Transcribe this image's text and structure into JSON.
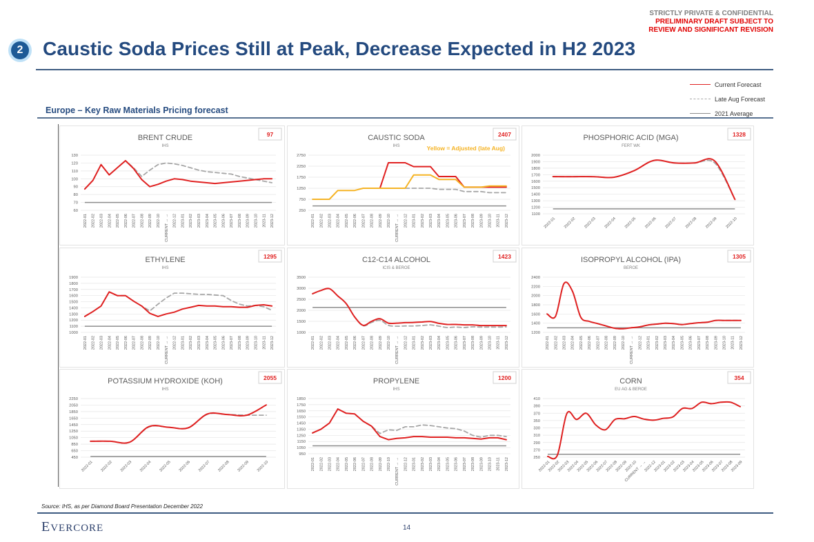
{
  "header": {
    "confidential": "STRICTLY PRIVATE & CONFIDENTIAL",
    "draft_line1": "PRELIMINARY DRAFT SUBJECT TO",
    "draft_line2": "REVIEW AND SIGNIFICANT REVISION",
    "section_number": "2",
    "title": "Caustic Soda Prices Still at Peak, Decrease Expected in H2 2023",
    "subtitle": "Europe – Key Raw Materials Pricing forecast"
  },
  "legend": [
    {
      "label": "Current Forecast",
      "style": "solid-red"
    },
    {
      "label": "Late Aug Forecast",
      "style": "dashed-grey"
    },
    {
      "label": "2021 Average",
      "style": "solid-grey"
    }
  ],
  "colors": {
    "current": "#e02020",
    "lateaug": "#a6a6a6",
    "average": "#8c8c8c",
    "adjusted": "#f5b324",
    "title_blue": "#244a7f",
    "badge_red": "#e02020"
  },
  "footer": {
    "source": "Source: IHS, as per Diamond Board Presentation December 2022",
    "logo_initial": "E",
    "logo_rest": "VERCORE",
    "page": "14"
  },
  "chart_data": [
    {
      "id": "brent",
      "type": "line",
      "title": "BRENT CRUDE",
      "source": "IHS",
      "badge": "97",
      "ylim": [
        60,
        130
      ],
      "yticks": [
        60,
        70,
        80,
        90,
        100,
        110,
        120,
        130
      ],
      "rotate": 90,
      "categories": [
        "2022-01",
        "2022-02",
        "2022-03",
        "2022-04",
        "2022-05",
        "2022-06",
        "2022-07",
        "2022-08",
        "2022-09",
        "2022-10",
        "CURRENT → →",
        "2022-12",
        "2023-01",
        "2023-02",
        "2023-03",
        "2023-04",
        "2023-05",
        "2023-06",
        "2023-07",
        "2023-08",
        "2023-09",
        "2023-10",
        "2023-11",
        "2023-12"
      ],
      "series": [
        {
          "name": "Late Aug Forecast",
          "style": "lateaug",
          "values": [
            87,
            98,
            118,
            105,
            114,
            123,
            114,
            103,
            111,
            118,
            120,
            119,
            117,
            114,
            111,
            109,
            108,
            107,
            106,
            103,
            101,
            99,
            97,
            95
          ]
        },
        {
          "name": "Current Forecast",
          "style": "current",
          "values": [
            87,
            98,
            118,
            105,
            114,
            123,
            113,
            99,
            90,
            93,
            97,
            100,
            99,
            97,
            96,
            95,
            94,
            95,
            96,
            97,
            98,
            99,
            100,
            100
          ]
        }
      ],
      "average": 70
    },
    {
      "id": "caustic",
      "type": "line",
      "title": "CAUSTIC SODA",
      "source": "IHS",
      "badge": "2407",
      "annotation": "Yellow = Adjusted (late Aug)",
      "ylim": [
        250,
        2750
      ],
      "yticks": [
        250,
        750,
        1250,
        1750,
        2250,
        2750
      ],
      "rotate": 90,
      "categories": [
        "2022-01",
        "2022-02",
        "2022-03",
        "2022-04",
        "2022-05",
        "2022-06",
        "2022-07",
        "2022-08",
        "2022-09",
        "2022-10",
        "CURRENT → →",
        "2022-12",
        "2023-01",
        "2023-02",
        "2023-03",
        "2023-04",
        "2023-05",
        "2023-06",
        "2023-07",
        "2023-08",
        "2023-09",
        "2023-10",
        "2023-11",
        "2023-12"
      ],
      "series": [
        {
          "name": "Late Aug Forecast",
          "style": "lateaug",
          "values": [
            null,
            null,
            null,
            null,
            null,
            null,
            null,
            null,
            null,
            null,
            null,
            1250,
            1250,
            1250,
            1250,
            1200,
            1200,
            1200,
            1100,
            1100,
            1100,
            1050,
            1050,
            1050
          ]
        },
        {
          "name": "Current Forecast",
          "style": "current",
          "values": [
            null,
            null,
            null,
            null,
            null,
            null,
            null,
            null,
            1250,
            2407,
            2407,
            2407,
            2230,
            2230,
            2230,
            1780,
            1780,
            1780,
            1300,
            1300,
            1300,
            1300,
            1300,
            1300
          ]
        },
        {
          "name": "Adjusted (late Aug)",
          "style": "adjusted",
          "values": [
            750,
            750,
            750,
            1150,
            1150,
            1150,
            1250,
            1250,
            1250,
            1250,
            1250,
            1250,
            1850,
            1850,
            1850,
            1650,
            1650,
            1650,
            1300,
            1300,
            1300,
            1350,
            1350,
            1350
          ]
        }
      ],
      "average": 450
    },
    {
      "id": "phosphoric",
      "type": "line",
      "title": "PHOSPHORIC ACID (MGA)",
      "source": "FERT WK",
      "badge": "1328",
      "ylim": [
        1100,
        2000
      ],
      "yticks": [
        1100,
        1200,
        1300,
        1400,
        1500,
        1600,
        1700,
        1800,
        1900,
        2000
      ],
      "rotate": 45,
      "smooth": true,
      "categories": [
        "2022-01",
        "2022-02",
        "2022-03",
        "2022-04",
        "2022-05",
        "2022-06",
        "2022-07",
        "2022-08",
        "2022-09",
        "2022-10"
      ],
      "series": [
        {
          "name": "Late Aug Forecast",
          "style": "lateaug",
          "values": [
            1670,
            1670,
            1670,
            1660,
            1760,
            1920,
            1880,
            1880,
            1880,
            1320
          ]
        },
        {
          "name": "Current Forecast",
          "style": "current",
          "values": [
            1670,
            1670,
            1670,
            1660,
            1760,
            1920,
            1880,
            1880,
            1910,
            1320
          ]
        }
      ],
      "average": 1175
    },
    {
      "id": "ethylene",
      "type": "line",
      "title": "ETHYLENE",
      "source": "IHS",
      "badge": "1295",
      "ylim": [
        1000,
        1900
      ],
      "yticks": [
        1000,
        1100,
        1200,
        1300,
        1400,
        1500,
        1600,
        1700,
        1800,
        1900
      ],
      "rotate": 90,
      "categories": [
        "2022-01",
        "2022-02",
        "2022-03",
        "2022-04",
        "2022-05",
        "2022-06",
        "2022-07",
        "2022-08",
        "2022-09",
        "2022-10",
        "CURRENT → →",
        "2022-12",
        "2023-01",
        "2023-02",
        "2023-03",
        "2023-04",
        "2023-05",
        "2023-06",
        "2023-07",
        "2023-08",
        "2023-09",
        "2023-10",
        "2023-11",
        "2023-12"
      ],
      "series": [
        {
          "name": "Late Aug Forecast",
          "style": "lateaug",
          "values": [
            1260,
            1340,
            1430,
            1660,
            1600,
            1600,
            1510,
            1430,
            1350,
            1460,
            1560,
            1640,
            1640,
            1630,
            1620,
            1620,
            1610,
            1600,
            1520,
            1460,
            1430,
            1440,
            1420,
            1360
          ]
        },
        {
          "name": "Current Forecast",
          "style": "current",
          "values": [
            1260,
            1340,
            1430,
            1660,
            1600,
            1600,
            1510,
            1430,
            1310,
            1260,
            1300,
            1330,
            1380,
            1410,
            1440,
            1430,
            1430,
            1420,
            1420,
            1410,
            1410,
            1440,
            1450,
            1430
          ]
        }
      ],
      "average": 1100
    },
    {
      "id": "c12c14",
      "type": "line",
      "title": "C12-C14 ALCOHOL",
      "source": "ICIS & BEROE",
      "badge": "1423",
      "ylim": [
        1000,
        3500
      ],
      "yticks": [
        1000,
        1500,
        2000,
        2500,
        3000,
        3500
      ],
      "rotate": 90,
      "smooth": true,
      "categories": [
        "2022-01",
        "2022-02",
        "2022-03",
        "2022-04",
        "2022-05",
        "2022-06",
        "2022-07",
        "2022-08",
        "2022-09",
        "2022-10",
        "CURRENT → →",
        "2022-12",
        "2023-01",
        "2023-02",
        "2023-03",
        "2023-04",
        "2023-05",
        "2023-06",
        "2023-07",
        "2023-08",
        "2023-09",
        "2023-10",
        "2023-11",
        "2023-12"
      ],
      "series": [
        {
          "name": "Late Aug Forecast",
          "style": "lateaug",
          "values": [
            2750,
            2900,
            2980,
            2650,
            2300,
            1700,
            1300,
            1450,
            1550,
            1320,
            1280,
            1290,
            1290,
            1310,
            1340,
            1280,
            1220,
            1240,
            1220,
            1250,
            1240,
            1240,
            1240,
            1250
          ]
        },
        {
          "name": "Current Forecast",
          "style": "current",
          "values": [
            2750,
            2900,
            2980,
            2650,
            2300,
            1700,
            1320,
            1500,
            1620,
            1420,
            1420,
            1440,
            1450,
            1470,
            1490,
            1410,
            1360,
            1360,
            1340,
            1340,
            1310,
            1310,
            1310,
            1310
          ]
        }
      ],
      "average": 2130
    },
    {
      "id": "ipa",
      "type": "line",
      "title": "ISOPROPYL ALCOHOL (IPA)",
      "source": "BEROE",
      "badge": "1305",
      "ylim": [
        1200,
        2400
      ],
      "yticks": [
        1200,
        1400,
        1600,
        1800,
        2000,
        2200,
        2400
      ],
      "rotate": 90,
      "smooth": true,
      "categories": [
        "2022-01",
        "2022-02",
        "2022-03",
        "2022-04",
        "2022-05",
        "2022-06",
        "2022-07",
        "2022-08",
        "2022-09",
        "2022-10",
        "CURRENT → →",
        "2022-12",
        "2023-01",
        "2023-02",
        "2023-03",
        "2023-04",
        "2023-05",
        "2023-06",
        "2023-07",
        "2023-08",
        "2023-09",
        "2023-10",
        "2023-11",
        "2023-12"
      ],
      "series": [
        {
          "name": "Late Aug Forecast",
          "style": "lateaug",
          "values": [
            1600,
            1550,
            2260,
            2100,
            1530,
            1440,
            1390,
            1340,
            1290,
            1280,
            1300,
            1320,
            1360,
            1380,
            1400,
            1390,
            1370,
            1390,
            1410,
            1420,
            1460,
            1460,
            1460,
            1460
          ]
        },
        {
          "name": "Current Forecast",
          "style": "current",
          "values": [
            1600,
            1550,
            2260,
            2100,
            1530,
            1440,
            1390,
            1340,
            1290,
            1280,
            1300,
            1320,
            1360,
            1380,
            1400,
            1390,
            1370,
            1390,
            1410,
            1420,
            1460,
            1460,
            1460,
            1460
          ]
        }
      ],
      "average": 1300
    },
    {
      "id": "koh",
      "type": "line",
      "title": "POTASSIUM HYDROXIDE (KOH)",
      "source": "IHS",
      "badge": "2055",
      "ylim": [
        450,
        2250
      ],
      "yticks": [
        450,
        650,
        850,
        1050,
        1250,
        1450,
        1650,
        1850,
        2050,
        2250
      ],
      "rotate": 45,
      "smooth": true,
      "categories": [
        "2022-01",
        "2022-02",
        "2022-03",
        "2022-04",
        "2022-05",
        "2022-06",
        "2022-07",
        "2022-08",
        "2022-09",
        "2022-10"
      ],
      "series": [
        {
          "name": "Late Aug Forecast",
          "style": "lateaug",
          "values": [
            940,
            940,
            910,
            1380,
            1370,
            1350,
            1770,
            1760,
            1740,
            1740
          ]
        },
        {
          "name": "Current Forecast",
          "style": "current",
          "values": [
            940,
            940,
            910,
            1390,
            1370,
            1350,
            1780,
            1760,
            1740,
            2055
          ]
        }
      ],
      "average": 470
    },
    {
      "id": "propylene",
      "type": "line",
      "title": "PROPYLENE",
      "source": "IHS",
      "badge": "1200",
      "ylim": [
        950,
        1850
      ],
      "yticks": [
        950,
        1050,
        1150,
        1250,
        1350,
        1450,
        1550,
        1650,
        1750,
        1850
      ],
      "rotate": 90,
      "categories": [
        "2022-01",
        "2022-02",
        "2022-03",
        "2022-04",
        "2022-05",
        "2022-06",
        "2022-07",
        "2022-08",
        "2022-09",
        "2022-10",
        "CURRENT → →",
        "2022-12",
        "2023-01",
        "2023-02",
        "2023-03",
        "2023-04",
        "2023-05",
        "2023-06",
        "2023-07",
        "2023-08",
        "2023-09",
        "2023-10",
        "2023-11",
        "2023-12"
      ],
      "series": [
        {
          "name": "Late Aug Forecast",
          "style": "lateaug",
          "values": [
            1290,
            1350,
            1450,
            1680,
            1610,
            1600,
            1480,
            1400,
            1280,
            1340,
            1330,
            1390,
            1390,
            1420,
            1410,
            1390,
            1370,
            1360,
            1320,
            1250,
            1220,
            1250,
            1250,
            1230
          ]
        },
        {
          "name": "Current Forecast",
          "style": "current",
          "values": [
            1290,
            1350,
            1450,
            1680,
            1610,
            1600,
            1480,
            1400,
            1230,
            1180,
            1200,
            1210,
            1230,
            1230,
            1220,
            1220,
            1220,
            1210,
            1210,
            1200,
            1190,
            1210,
            1210,
            1180
          ]
        }
      ],
      "average": 1080
    },
    {
      "id": "corn",
      "type": "line",
      "title": "CORN",
      "source": "EU AG & BEROE",
      "badge": "354",
      "ylim": [
        250,
        410
      ],
      "yticks": [
        250,
        270,
        290,
        310,
        330,
        350,
        370,
        390,
        410
      ],
      "rotate": 45,
      "smooth": true,
      "categories": [
        "2022-01",
        "2022-02",
        "2022-03",
        "2022-04",
        "2022-05",
        "2022-06",
        "2022-07",
        "2022-08",
        "2022-09",
        "2022-10",
        "CURRENT → →",
        "2022-12",
        "2023-01",
        "2023-02",
        "2023-03",
        "2023-04",
        "2023-05",
        "2023-06",
        "2023-07",
        "2023-08",
        "2023-09"
      ],
      "series": [
        {
          "name": "Late Aug Forecast",
          "style": "lateaug",
          "values": [
            252,
            255,
            370,
            353,
            370,
            338,
            325,
            353,
            355,
            361,
            354,
            351,
            356,
            360,
            383,
            383,
            400,
            396,
            400,
            400,
            388
          ]
        },
        {
          "name": "Current Forecast",
          "style": "current",
          "values": [
            252,
            255,
            370,
            353,
            370,
            338,
            325,
            353,
            355,
            361,
            354,
            351,
            356,
            360,
            383,
            383,
            400,
            396,
            400,
            400,
            388
          ]
        }
      ],
      "average": 258
    }
  ]
}
